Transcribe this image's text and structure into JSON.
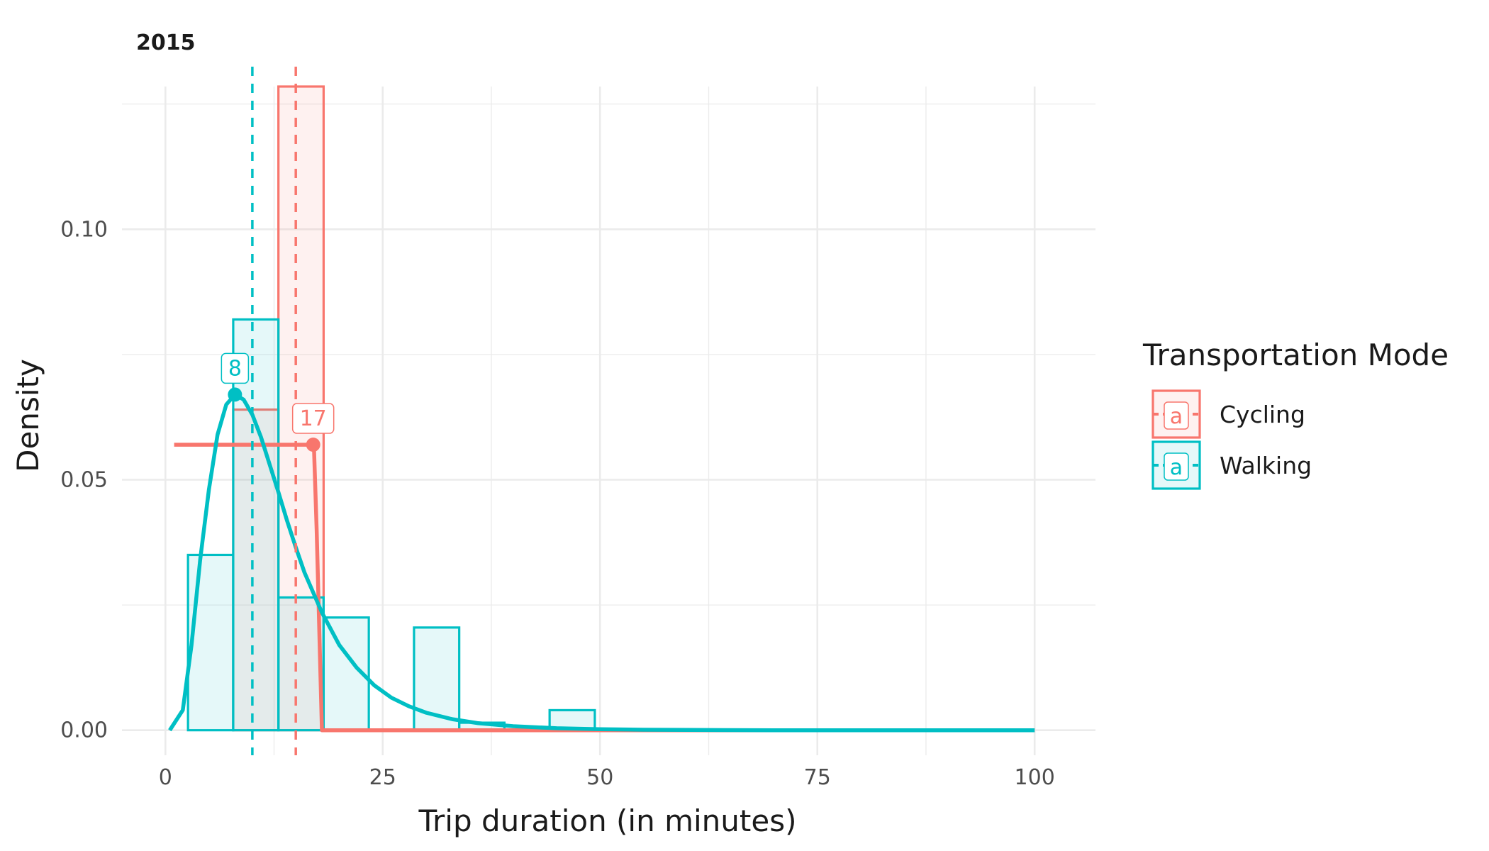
{
  "chart_data": {
    "type": "bar",
    "title": "2015",
    "xlabel": "Trip duration (in minutes)",
    "ylabel": "Density",
    "xlim": [
      -5,
      107
    ],
    "ylim": [
      -0.005,
      0.1285
    ],
    "x_ticks": [
      0,
      25,
      50,
      75,
      100
    ],
    "x_tick_labels": [
      "0",
      "25",
      "50",
      "75",
      "100"
    ],
    "y_ticks": [
      0,
      0.05,
      0.1
    ],
    "y_tick_labels": [
      "0.00",
      "0.05",
      "0.10"
    ],
    "grid": true,
    "legend": {
      "title": "Transportation Mode",
      "position": "right",
      "entries": [
        "Cycling",
        "Walking"
      ],
      "key_glyph": "a"
    },
    "series": [
      {
        "name": "Cycling",
        "color": "#F8766D",
        "fill": "#F8766D",
        "bin_width": 5.2,
        "bins": [
          {
            "x0": 7.8,
            "x1": 13.0,
            "density": 0.064
          },
          {
            "x0": 13.0,
            "x1": 18.2,
            "density": 0.1285
          }
        ],
        "density_curve": {
          "x": [
            1,
            16.9,
            17.1,
            17.4,
            17.7,
            18.0,
            100
          ],
          "y": [
            0.057,
            0.057,
            0.056,
            0.04,
            0.02,
            0.0,
            0.0
          ]
        },
        "mean_line": 15,
        "mode": 17,
        "mode_label": "17",
        "mode_density": 0.057
      },
      {
        "name": "Walking",
        "color": "#00BFC4",
        "fill": "#00BFC4",
        "bin_width": 5.2,
        "bins": [
          {
            "x0": 2.6,
            "x1": 7.8,
            "density": 0.035
          },
          {
            "x0": 7.8,
            "x1": 13.0,
            "density": 0.082
          },
          {
            "x0": 13.0,
            "x1": 18.2,
            "density": 0.0265
          },
          {
            "x0": 18.2,
            "x1": 23.4,
            "density": 0.0225
          },
          {
            "x0": 28.6,
            "x1": 33.8,
            "density": 0.0205
          },
          {
            "x0": 33.8,
            "x1": 39.0,
            "density": 0.0015
          },
          {
            "x0": 44.2,
            "x1": 49.4,
            "density": 0.004
          }
        ],
        "density_curve": {
          "x": [
            0.5,
            2,
            3,
            4,
            5,
            6,
            7,
            8,
            9,
            10,
            11,
            12,
            13,
            14,
            15,
            16,
            18,
            20,
            22,
            24,
            26,
            28,
            30,
            33,
            36,
            40,
            45,
            50,
            55,
            60,
            70,
            80,
            90,
            100
          ],
          "y": [
            0.0,
            0.004,
            0.017,
            0.034,
            0.048,
            0.059,
            0.065,
            0.067,
            0.066,
            0.063,
            0.0585,
            0.053,
            0.0475,
            0.0418,
            0.0365,
            0.0315,
            0.0235,
            0.017,
            0.0125,
            0.009,
            0.0065,
            0.0048,
            0.0035,
            0.0022,
            0.0014,
            0.0008,
            0.0004,
            0.0002,
            0.0001,
            5e-05,
            0.0,
            0.0,
            0.0,
            0.0
          ]
        },
        "mean_line": 10,
        "mode": 8,
        "mode_label": "8",
        "mode_density": 0.067
      }
    ]
  }
}
